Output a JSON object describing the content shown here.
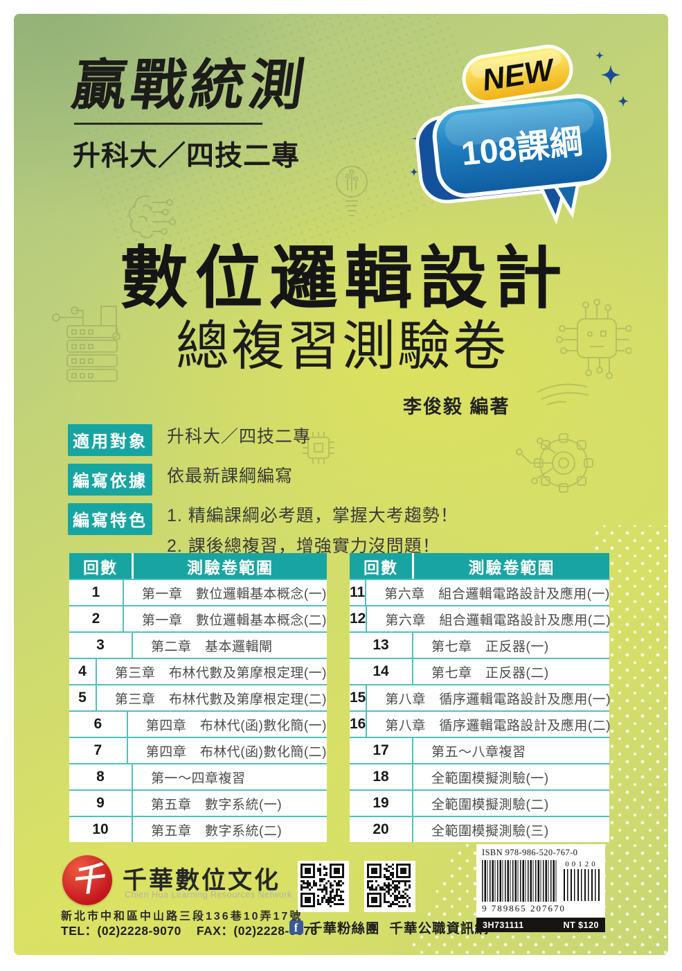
{
  "series": {
    "title": "贏戰統測",
    "subtitle": "升科大／四技二專"
  },
  "badge": {
    "new_label": "NEW",
    "curriculum_label": "108課綱"
  },
  "title": {
    "main": "數位邏輯設計",
    "sub": "總複習測驗卷",
    "author": "李俊毅 編著"
  },
  "info": {
    "rows": [
      {
        "label": "適用對象",
        "value": "升科大／四技二專"
      },
      {
        "label": "編寫依據",
        "value": "依最新課綱編寫"
      },
      {
        "label": "編寫特色",
        "value": "1. 精編課綱必考題，掌握大考趨勢！",
        "value2": "2. 課後總複習，增強實力沒問題！"
      }
    ]
  },
  "table": {
    "header_round": "回數",
    "header_range": "測驗卷範圍",
    "left": [
      {
        "no": "1",
        "range": "第一章　數位邏輯基本概念(一)"
      },
      {
        "no": "2",
        "range": "第一章　數位邏輯基本概念(二)"
      },
      {
        "no": "3",
        "range": "第二章　基本邏輯閘"
      },
      {
        "no": "4",
        "range": "第三章　布林代數及第摩根定理(一)"
      },
      {
        "no": "5",
        "range": "第三章　布林代數及第摩根定理(二)"
      },
      {
        "no": "6",
        "range": "第四章　布林代(函)數化簡(一)"
      },
      {
        "no": "7",
        "range": "第四章　布林代(函)數化簡(二)"
      },
      {
        "no": "8",
        "range": "第一～四章複習"
      },
      {
        "no": "9",
        "range": "第五章　數字系統(一)"
      },
      {
        "no": "10",
        "range": "第五章　數字系統(二)"
      }
    ],
    "right": [
      {
        "no": "11",
        "range": "第六章　組合邏輯電路設計及應用(一)"
      },
      {
        "no": "12",
        "range": "第六章　組合邏輯電路設計及應用(二)"
      },
      {
        "no": "13",
        "range": "第七章　正反器(一)"
      },
      {
        "no": "14",
        "range": "第七章　正反器(二)"
      },
      {
        "no": "15",
        "range": "第八章　循序邏輯電路設計及應用(一)"
      },
      {
        "no": "16",
        "range": "第八章　循序邏輯電路設計及應用(二)"
      },
      {
        "no": "17",
        "range": "第五～八章複習"
      },
      {
        "no": "18",
        "range": "全範圍模擬測驗(一)"
      },
      {
        "no": "19",
        "range": "全範圍模擬測驗(二)"
      },
      {
        "no": "20",
        "range": "全範圍模擬測驗(三)"
      }
    ]
  },
  "footer": {
    "logo_glyph": "千",
    "publisher": "千華數位文化",
    "publisher_en": "Chien Hua Learning Resources Network",
    "address": "新北市中和區中山路三段136巷10弄17號",
    "tel": "TEL：(02)2228-9070",
    "fax": "FAX：(02)2228-9076",
    "fb_label": "千華粉絲團",
    "web_label": "千華公職資訊網",
    "fb_glyph": "f",
    "isbn": "ISBN 978-986-520-767-0",
    "ean_digits": "9 789865 207670",
    "addon_digits": "00120",
    "product_code": "3H731111",
    "price": "NT $120"
  },
  "colors": {
    "teal": "#18a5a1",
    "table_divider": "#4fc0bd",
    "bubble_blue": "#1468a8",
    "bubble_navy": "#15509b",
    "badge_yellow": "#f5ba17",
    "logo_red": "#c2161d",
    "facebook_blue": "#3b5998",
    "cover_green": "#cfdb6f"
  }
}
